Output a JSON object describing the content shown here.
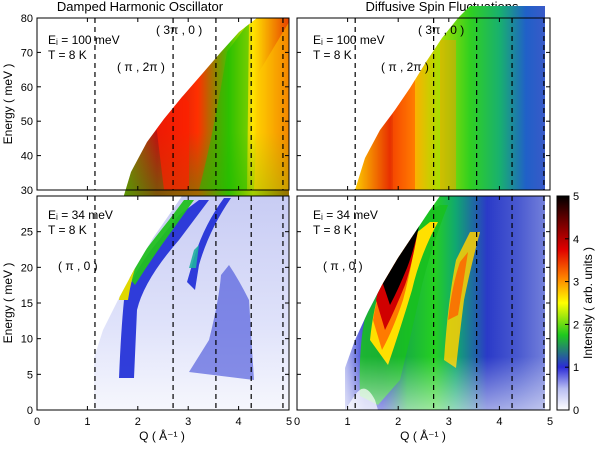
{
  "chart_data": [
    {
      "type": "heatmap",
      "panel": "top-left",
      "title": "Damped Harmonic Oscillator",
      "xlabel": "",
      "ylabel": "Energy ( meV )",
      "xlim": [
        0,
        5
      ],
      "ylim": [
        30,
        80
      ],
      "yticks": [
        30,
        40,
        50,
        60,
        70,
        80
      ],
      "annotations": [
        "Eᵢ = 100 meV",
        "T = 8 K",
        "( π , 2π )",
        "( 3π , 0 )"
      ],
      "dispersion_q": [
        1.15,
        2.7,
        3.55,
        4.25,
        4.88
      ],
      "intensity_samples": [
        {
          "q": 2.7,
          "e": 40,
          "i": 1.5
        },
        {
          "q": 2.6,
          "e": 55,
          "i": 4.0
        },
        {
          "q": 3.0,
          "e": 70,
          "i": 4.5
        },
        {
          "q": 4.2,
          "e": 70,
          "i": 1.2
        }
      ]
    },
    {
      "type": "heatmap",
      "panel": "top-right",
      "title": "Diffusive Spin Fluctuations",
      "xlabel": "",
      "ylabel": "",
      "xlim": [
        0,
        5
      ],
      "ylim": [
        30,
        80
      ],
      "annotations": [
        "Eᵢ = 100 meV",
        "T = 8 K",
        "( π , 2π )",
        "( 3π , 0 )"
      ],
      "dispersion_q": [
        1.15,
        2.7,
        3.55,
        4.25,
        4.88
      ],
      "intensity_samples": [
        {
          "q": 2.8,
          "e": 50,
          "i": 2.5
        },
        {
          "q": 3.5,
          "e": 60,
          "i": 1.6
        },
        {
          "q": 4.8,
          "e": 60,
          "i": 0.9
        }
      ]
    },
    {
      "type": "heatmap",
      "panel": "bottom-left",
      "title": "",
      "xlabel": "Q ( Å⁻¹ )",
      "ylabel": "Energy ( meV )",
      "xlim": [
        0,
        5
      ],
      "ylim": [
        0,
        30
      ],
      "xticks": [
        0,
        1,
        2,
        3,
        4,
        5
      ],
      "yticks": [
        0,
        5,
        10,
        15,
        20,
        25
      ],
      "annotations": [
        "Eᵢ = 34 meV",
        "T = 8 K",
        "( π , 0 )"
      ],
      "dispersion_q": [
        1.15,
        2.7,
        3.55,
        4.25,
        4.88
      ],
      "intensity_samples": [
        {
          "q": 1.2,
          "e": 18,
          "i": 4.0
        },
        {
          "q": 1.2,
          "e": 8,
          "i": 1.0
        },
        {
          "q": 2.7,
          "e": 16,
          "i": 1.0
        }
      ]
    },
    {
      "type": "heatmap",
      "panel": "bottom-right",
      "title": "",
      "xlabel": "Q ( Å⁻¹ )",
      "ylabel": "",
      "xlim": [
        0,
        5
      ],
      "ylim": [
        0,
        30
      ],
      "xticks": [
        0,
        1,
        2,
        3,
        4,
        5
      ],
      "annotations": [
        "Eᵢ = 34 meV",
        "T = 8 K",
        "( π , 0 )"
      ],
      "dispersion_q": [
        1.15,
        2.7,
        3.55,
        4.25,
        4.88
      ],
      "intensity_samples": [
        {
          "q": 1.3,
          "e": 20,
          "i": 5.0
        },
        {
          "q": 1.5,
          "e": 12,
          "i": 4.0
        },
        {
          "q": 2.6,
          "e": 20,
          "i": 3.0
        },
        {
          "q": 4.0,
          "e": 10,
          "i": 1.0
        }
      ]
    }
  ],
  "colorbar": {
    "label": "Intensity ( arb. units )",
    "range": [
      0,
      5
    ],
    "ticks": [
      0,
      1,
      2,
      3,
      4,
      5
    ],
    "colormap": [
      "#ffffff",
      "#2b2bd8",
      "#1ec81e",
      "#ffff00",
      "#ff7f00",
      "#cc0000",
      "#000000"
    ]
  },
  "labels": {
    "title_left": "Damped Harmonic Oscillator",
    "title_right": "Diffusive Spin Fluctuations",
    "ylabel": "Energy ( meV )",
    "ylabel_bottom": "Energy ( meV )",
    "xlabel": "Q ( Å⁻¹ )",
    "xlabel_right": "Q ( Å⁻¹ )",
    "ei_high": "Eᵢ = 100 meV",
    "ei_low": "Eᵢ = 34 meV",
    "temp": "T = 8 K",
    "ann_pi2pi": "( π , 2π )",
    "ann_3pi0": "( 3π , 0 )",
    "ann_pi0": "( π , 0 )"
  }
}
